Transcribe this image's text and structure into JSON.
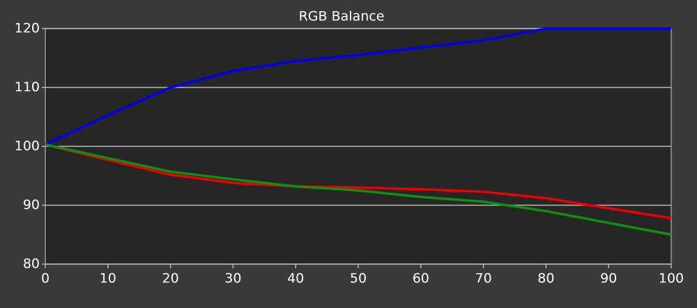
{
  "chart_data": {
    "type": "line",
    "title": "RGB Balance",
    "x": [
      0,
      10,
      20,
      30,
      40,
      50,
      60,
      70,
      80,
      90,
      100
    ],
    "series": [
      {
        "color": "#0000ee",
        "values": [
          100.3,
          105.3,
          110,
          112.8,
          114.5,
          115.5,
          116.8,
          118,
          120,
          120,
          120
        ]
      },
      {
        "color": "#ee0000",
        "values": [
          100.3,
          97.7,
          95.2,
          93.8,
          93.2,
          93,
          92.7,
          92.3,
          91.2,
          89.5,
          87.8
        ]
      },
      {
        "color": "#109010",
        "values": [
          100.3,
          98,
          95.7,
          94.4,
          93.2,
          92.5,
          91.4,
          90.6,
          89,
          87,
          85
        ]
      }
    ],
    "xlim": [
      0,
      100
    ],
    "xticks": [
      0,
      10,
      20,
      30,
      40,
      50,
      60,
      70,
      80,
      90,
      100
    ],
    "ylim": [
      80,
      120
    ],
    "yticks": [
      80,
      90,
      100,
      110,
      120
    ],
    "grid": true
  }
}
